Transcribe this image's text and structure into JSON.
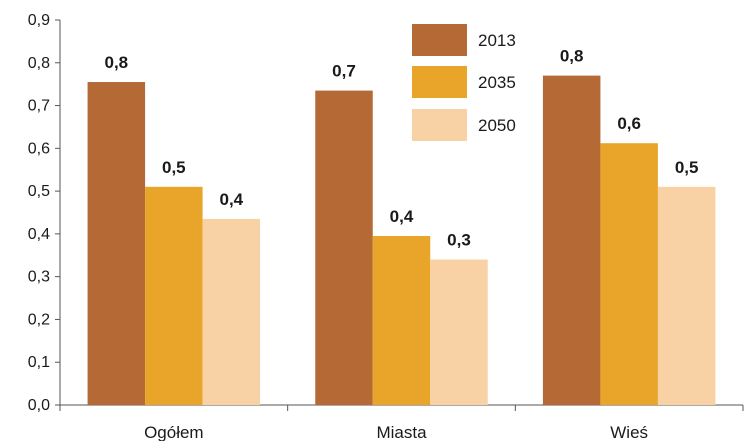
{
  "chart_data": {
    "type": "bar",
    "categories": [
      "Ogółem",
      "Miasta",
      "Wieś"
    ],
    "series": [
      {
        "name": "2013",
        "values": [
          0.755,
          0.735,
          0.77
        ],
        "labels": [
          "0,8",
          "0,7",
          "0,8"
        ],
        "color": "#b56a36"
      },
      {
        "name": "2035",
        "values": [
          0.51,
          0.395,
          0.612
        ],
        "labels": [
          "0,5",
          "0,4",
          "0,6"
        ],
        "color": "#e9a42a"
      },
      {
        "name": "2050",
        "values": [
          0.435,
          0.34,
          0.51
        ],
        "labels": [
          "0,4",
          "0,3",
          "0,5"
        ],
        "color": "#f8d2a5"
      }
    ],
    "ylim": [
      0,
      0.9
    ],
    "yticks": [
      0,
      0.1,
      0.2,
      0.3,
      0.4,
      0.5,
      0.6,
      0.7,
      0.8,
      0.9
    ],
    "ytick_labels": [
      "0,0",
      "0,1",
      "0,2",
      "0,3",
      "0,4",
      "0,5",
      "0,6",
      "0,7",
      "0,8",
      "0,9"
    ],
    "grid": false,
    "legend_position": "top-center",
    "title": "",
    "xlabel": "",
    "ylabel": ""
  }
}
